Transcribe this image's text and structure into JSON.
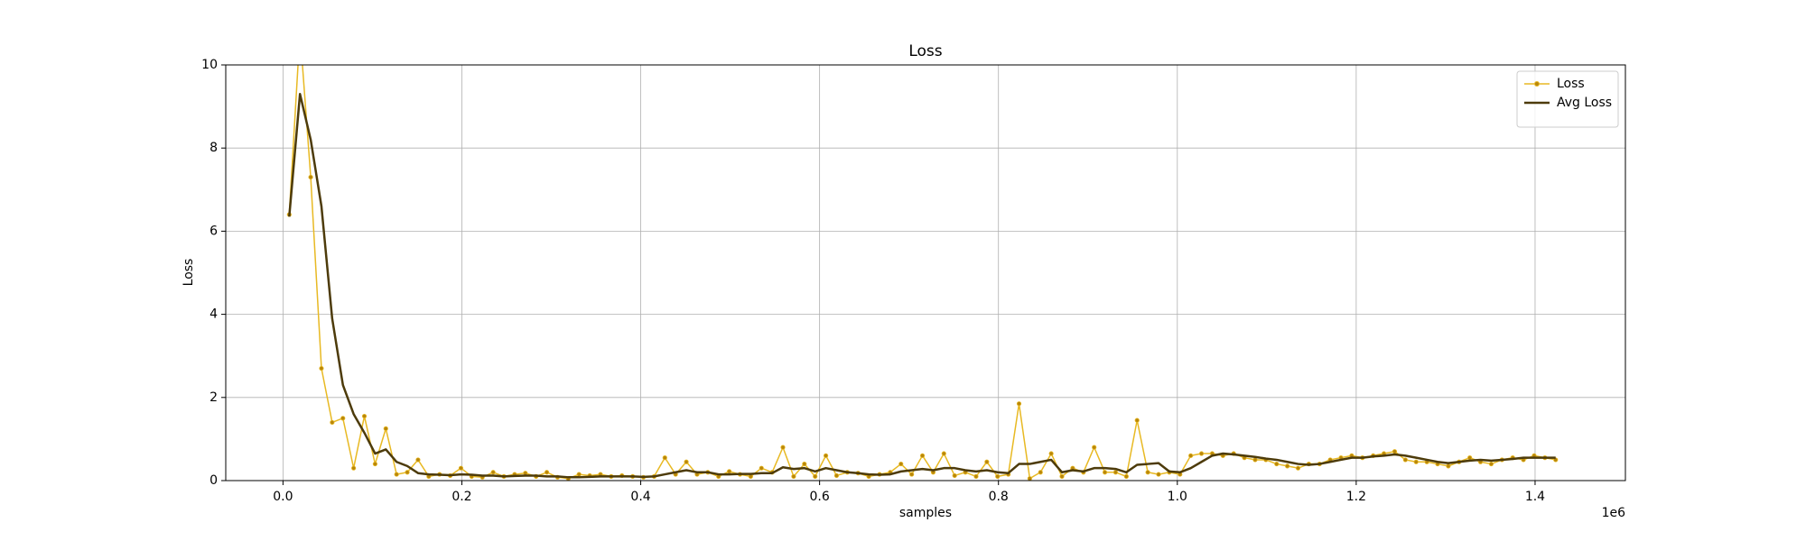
{
  "chart_data": {
    "type": "line",
    "title": "Loss",
    "xlabel": "samples",
    "ylabel": "Loss",
    "x_offset_label": "1e6",
    "x": [
      7000,
      19000,
      31000,
      43000,
      55000,
      67000,
      79000,
      91000,
      103000,
      115000,
      127000,
      139000,
      151000,
      163000,
      175000,
      187000,
      199000,
      211000,
      223000,
      235000,
      247000,
      259000,
      271000,
      283000,
      295000,
      307000,
      319000,
      331000,
      343000,
      355000,
      367000,
      379000,
      391000,
      403000,
      415000,
      427000,
      439000,
      451000,
      463000,
      475000,
      487000,
      499000,
      511000,
      523000,
      535000,
      547000,
      559000,
      571000,
      583000,
      595000,
      607000,
      619000,
      631000,
      643000,
      655000,
      667000,
      679000,
      691000,
      703000,
      715000,
      727000,
      739000,
      751000,
      763000,
      775000,
      787000,
      799000,
      811000,
      823000,
      835000,
      847000,
      859000,
      871000,
      883000,
      895000,
      907000,
      919000,
      931000,
      943000,
      955000,
      967000,
      979000,
      991000,
      1003000,
      1015000,
      1027000,
      1039000,
      1051000,
      1063000,
      1075000,
      1087000,
      1099000,
      1111000,
      1123000,
      1135000,
      1147000,
      1159000,
      1171000,
      1183000,
      1195000,
      1207000,
      1219000,
      1231000,
      1243000,
      1255000,
      1267000,
      1279000,
      1291000,
      1303000,
      1315000,
      1327000,
      1339000,
      1351000,
      1363000,
      1375000,
      1387000,
      1399000,
      1411000,
      1423000
    ],
    "series": [
      {
        "name": "Loss",
        "color": "#e8b923",
        "marker_color": "#b8860b",
        "markers": true,
        "line_width": 1.5,
        "values": [
          6.4,
          10.8,
          7.3,
          2.7,
          1.4,
          1.5,
          0.3,
          1.55,
          0.4,
          1.25,
          0.15,
          0.2,
          0.5,
          0.1,
          0.15,
          0.12,
          0.3,
          0.1,
          0.08,
          0.2,
          0.1,
          0.15,
          0.18,
          0.1,
          0.2,
          0.08,
          0.05,
          0.15,
          0.12,
          0.15,
          0.1,
          0.12,
          0.1,
          0.08,
          0.1,
          0.55,
          0.15,
          0.45,
          0.15,
          0.2,
          0.1,
          0.22,
          0.15,
          0.1,
          0.3,
          0.2,
          0.8,
          0.1,
          0.4,
          0.1,
          0.6,
          0.12,
          0.2,
          0.18,
          0.1,
          0.15,
          0.2,
          0.4,
          0.15,
          0.6,
          0.2,
          0.65,
          0.12,
          0.2,
          0.1,
          0.45,
          0.1,
          0.15,
          1.85,
          0.05,
          0.2,
          0.65,
          0.1,
          0.3,
          0.2,
          0.8,
          0.2,
          0.2,
          0.1,
          1.45,
          0.2,
          0.15,
          0.2,
          0.15,
          0.6,
          0.65,
          0.65,
          0.6,
          0.65,
          0.55,
          0.5,
          0.5,
          0.4,
          0.35,
          0.3,
          0.4,
          0.4,
          0.5,
          0.55,
          0.6,
          0.55,
          0.6,
          0.65,
          0.7,
          0.5,
          0.45,
          0.45,
          0.4,
          0.35,
          0.45,
          0.55,
          0.45,
          0.4,
          0.5,
          0.55,
          0.5,
          0.6,
          0.55,
          0.5
        ]
      },
      {
        "name": "Avg Loss",
        "color": "#4d3b0b",
        "markers": false,
        "line_width": 2.5,
        "values": [
          6.35,
          9.3,
          8.2,
          6.6,
          3.9,
          2.3,
          1.6,
          1.15,
          0.65,
          0.75,
          0.45,
          0.35,
          0.18,
          0.15,
          0.14,
          0.13,
          0.15,
          0.14,
          0.12,
          0.12,
          0.1,
          0.11,
          0.12,
          0.12,
          0.1,
          0.1,
          0.08,
          0.08,
          0.09,
          0.1,
          0.1,
          0.1,
          0.1,
          0.09,
          0.1,
          0.15,
          0.2,
          0.25,
          0.2,
          0.2,
          0.15,
          0.15,
          0.16,
          0.16,
          0.18,
          0.18,
          0.32,
          0.28,
          0.3,
          0.22,
          0.3,
          0.25,
          0.2,
          0.18,
          0.15,
          0.14,
          0.15,
          0.22,
          0.25,
          0.28,
          0.25,
          0.3,
          0.3,
          0.25,
          0.22,
          0.25,
          0.2,
          0.18,
          0.4,
          0.4,
          0.45,
          0.5,
          0.2,
          0.25,
          0.22,
          0.3,
          0.3,
          0.28,
          0.2,
          0.38,
          0.4,
          0.42,
          0.22,
          0.2,
          0.3,
          0.45,
          0.6,
          0.65,
          0.63,
          0.6,
          0.57,
          0.53,
          0.5,
          0.45,
          0.4,
          0.38,
          0.4,
          0.45,
          0.5,
          0.55,
          0.55,
          0.58,
          0.6,
          0.63,
          0.6,
          0.55,
          0.5,
          0.45,
          0.42,
          0.45,
          0.48,
          0.5,
          0.48,
          0.5,
          0.52,
          0.55,
          0.55,
          0.55,
          0.55
        ]
      }
    ],
    "xlim": [
      -64000,
      1501000
    ],
    "xticks": [
      {
        "value": 0,
        "label": "0.0"
      },
      {
        "value": 200000,
        "label": "0.2"
      },
      {
        "value": 400000,
        "label": "0.4"
      },
      {
        "value": 600000,
        "label": "0.6"
      },
      {
        "value": 800000,
        "label": "0.8"
      },
      {
        "value": 1000000,
        "label": "1.0"
      },
      {
        "value": 1200000,
        "label": "1.2"
      },
      {
        "value": 1400000,
        "label": "1.4"
      }
    ],
    "ylim": [
      0,
      10
    ],
    "yticks": [
      0,
      2,
      4,
      6,
      8,
      10
    ],
    "grid": true,
    "legend": "upper-right"
  }
}
